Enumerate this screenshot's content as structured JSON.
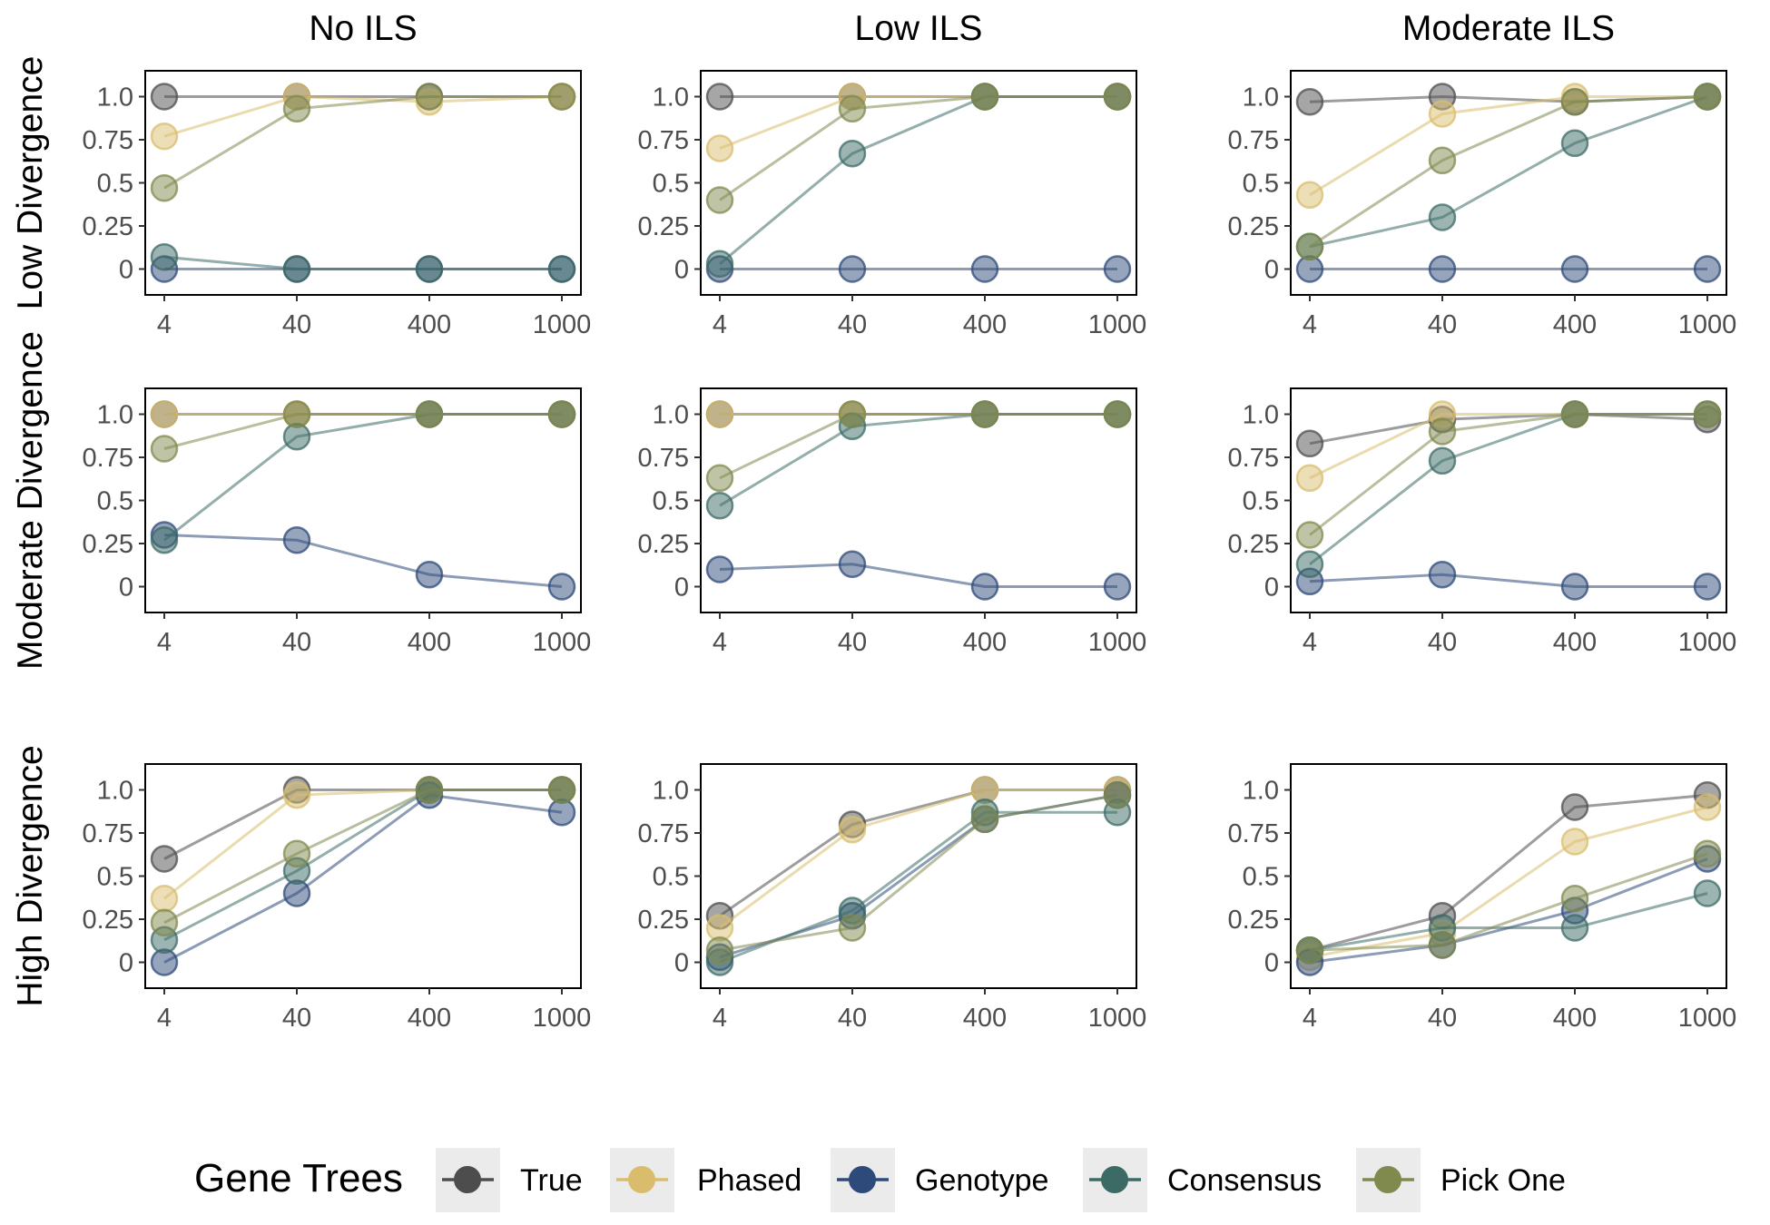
{
  "chart_data": {
    "type": "line",
    "layout": "facet-grid",
    "columns": [
      "No ILS",
      "Low ILS",
      "Moderate ILS"
    ],
    "rows": [
      "Low Divergence",
      "Moderate Divergence",
      "High Divergence"
    ],
    "x": [
      4,
      40,
      400,
      1000
    ],
    "x_tick_labels": [
      "4",
      "40",
      "400",
      "1000"
    ],
    "x_scale": "categorical",
    "y_ticks": [
      0,
      0.25,
      0.5,
      0.75,
      1.0
    ],
    "y_tick_labels": [
      "0",
      "0.25",
      "0.5",
      "0.75",
      "1.0"
    ],
    "ylim": [
      -0.15,
      1.15
    ],
    "grid": false,
    "legend": {
      "title": "Gene Trees",
      "position": "bottom",
      "entries": [
        {
          "name": "True",
          "color": "#4d4d4d"
        },
        {
          "name": "Phased",
          "color": "#d9bd6d"
        },
        {
          "name": "Genotype",
          "color": "#2d4a7a"
        },
        {
          "name": "Consensus",
          "color": "#3c6b66"
        },
        {
          "name": "Pick One",
          "color": "#808a4e"
        }
      ]
    },
    "panels": [
      {
        "row": 0,
        "col": 0,
        "series": [
          {
            "name": "True",
            "values": [
              1.0,
              1.0,
              1.0,
              1.0
            ]
          },
          {
            "name": "Phased",
            "values": [
              0.77,
              1.0,
              0.97,
              1.0
            ]
          },
          {
            "name": "Genotype",
            "values": [
              0.0,
              0.0,
              0.0,
              0.0
            ]
          },
          {
            "name": "Consensus",
            "values": [
              0.07,
              0.0,
              0.0,
              0.0
            ]
          },
          {
            "name": "Pick One",
            "values": [
              0.47,
              0.93,
              1.0,
              1.0
            ]
          }
        ]
      },
      {
        "row": 0,
        "col": 1,
        "series": [
          {
            "name": "True",
            "values": [
              1.0,
              1.0,
              1.0,
              1.0
            ]
          },
          {
            "name": "Phased",
            "values": [
              0.7,
              1.0,
              1.0,
              1.0
            ]
          },
          {
            "name": "Genotype",
            "values": [
              0.0,
              0.0,
              0.0,
              0.0
            ]
          },
          {
            "name": "Consensus",
            "values": [
              0.03,
              0.67,
              1.0,
              1.0
            ]
          },
          {
            "name": "Pick One",
            "values": [
              0.4,
              0.93,
              1.0,
              1.0
            ]
          }
        ]
      },
      {
        "row": 0,
        "col": 2,
        "series": [
          {
            "name": "True",
            "values": [
              0.97,
              1.0,
              0.97,
              1.0
            ]
          },
          {
            "name": "Phased",
            "values": [
              0.43,
              0.9,
              1.0,
              1.0
            ]
          },
          {
            "name": "Genotype",
            "values": [
              0.0,
              0.0,
              0.0,
              0.0
            ]
          },
          {
            "name": "Consensus",
            "values": [
              0.13,
              0.3,
              0.73,
              1.0
            ]
          },
          {
            "name": "Pick One",
            "values": [
              0.13,
              0.63,
              0.97,
              1.0
            ]
          }
        ]
      },
      {
        "row": 1,
        "col": 0,
        "series": [
          {
            "name": "True",
            "values": [
              1.0,
              1.0,
              1.0,
              1.0
            ]
          },
          {
            "name": "Phased",
            "values": [
              1.0,
              1.0,
              1.0,
              1.0
            ]
          },
          {
            "name": "Genotype",
            "values": [
              0.3,
              0.27,
              0.07,
              0.0
            ]
          },
          {
            "name": "Consensus",
            "values": [
              0.27,
              0.87,
              1.0,
              1.0
            ]
          },
          {
            "name": "Pick One",
            "values": [
              0.8,
              1.0,
              1.0,
              1.0
            ]
          }
        ]
      },
      {
        "row": 1,
        "col": 1,
        "series": [
          {
            "name": "True",
            "values": [
              1.0,
              1.0,
              1.0,
              1.0
            ]
          },
          {
            "name": "Phased",
            "values": [
              1.0,
              1.0,
              1.0,
              1.0
            ]
          },
          {
            "name": "Genotype",
            "values": [
              0.1,
              0.13,
              0.0,
              0.0
            ]
          },
          {
            "name": "Consensus",
            "values": [
              0.47,
              0.93,
              1.0,
              1.0
            ]
          },
          {
            "name": "Pick One",
            "values": [
              0.63,
              1.0,
              1.0,
              1.0
            ]
          }
        ]
      },
      {
        "row": 1,
        "col": 2,
        "series": [
          {
            "name": "True",
            "values": [
              0.83,
              0.97,
              1.0,
              0.97
            ]
          },
          {
            "name": "Phased",
            "values": [
              0.63,
              1.0,
              1.0,
              1.0
            ]
          },
          {
            "name": "Genotype",
            "values": [
              0.03,
              0.07,
              0.0,
              0.0
            ]
          },
          {
            "name": "Consensus",
            "values": [
              0.13,
              0.73,
              1.0,
              1.0
            ]
          },
          {
            "name": "Pick One",
            "values": [
              0.3,
              0.9,
              1.0,
              1.0
            ]
          }
        ]
      },
      {
        "row": 2,
        "col": 0,
        "series": [
          {
            "name": "True",
            "values": [
              0.6,
              1.0,
              1.0,
              1.0
            ]
          },
          {
            "name": "Phased",
            "values": [
              0.37,
              0.97,
              1.0,
              1.0
            ]
          },
          {
            "name": "Genotype",
            "values": [
              0.0,
              0.4,
              0.97,
              0.87
            ]
          },
          {
            "name": "Consensus",
            "values": [
              0.13,
              0.53,
              1.0,
              1.0
            ]
          },
          {
            "name": "Pick One",
            "values": [
              0.23,
              0.63,
              1.0,
              1.0
            ]
          }
        ]
      },
      {
        "row": 2,
        "col": 1,
        "series": [
          {
            "name": "True",
            "values": [
              0.27,
              0.8,
              1.0,
              1.0
            ]
          },
          {
            "name": "Phased",
            "values": [
              0.2,
              0.77,
              1.0,
              1.0
            ]
          },
          {
            "name": "Genotype",
            "values": [
              0.03,
              0.27,
              0.83,
              0.97
            ]
          },
          {
            "name": "Consensus",
            "values": [
              0.0,
              0.3,
              0.87,
              0.87
            ]
          },
          {
            "name": "Pick One",
            "values": [
              0.07,
              0.2,
              0.83,
              0.97
            ]
          }
        ]
      },
      {
        "row": 2,
        "col": 2,
        "series": [
          {
            "name": "True",
            "values": [
              0.07,
              0.27,
              0.9,
              0.97
            ]
          },
          {
            "name": "Phased",
            "values": [
              0.03,
              0.17,
              0.7,
              0.9
            ]
          },
          {
            "name": "Genotype",
            "values": [
              0.0,
              0.1,
              0.3,
              0.6
            ]
          },
          {
            "name": "Consensus",
            "values": [
              0.07,
              0.2,
              0.2,
              0.4
            ]
          },
          {
            "name": "Pick One",
            "values": [
              0.07,
              0.1,
              0.37,
              0.63
            ]
          }
        ]
      }
    ]
  }
}
